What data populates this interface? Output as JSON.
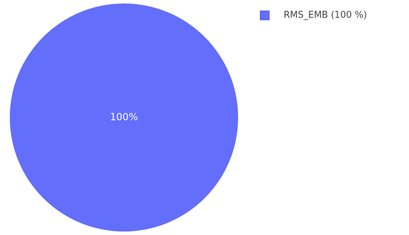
{
  "chart_data": {
    "type": "pie",
    "slices": [
      {
        "name": "RMS_EMB",
        "value": 100,
        "percent_label": "100%",
        "legend_label": "RMS_EMB (100 %)",
        "color": "#636efa"
      }
    ],
    "legend_position": "top-right"
  }
}
